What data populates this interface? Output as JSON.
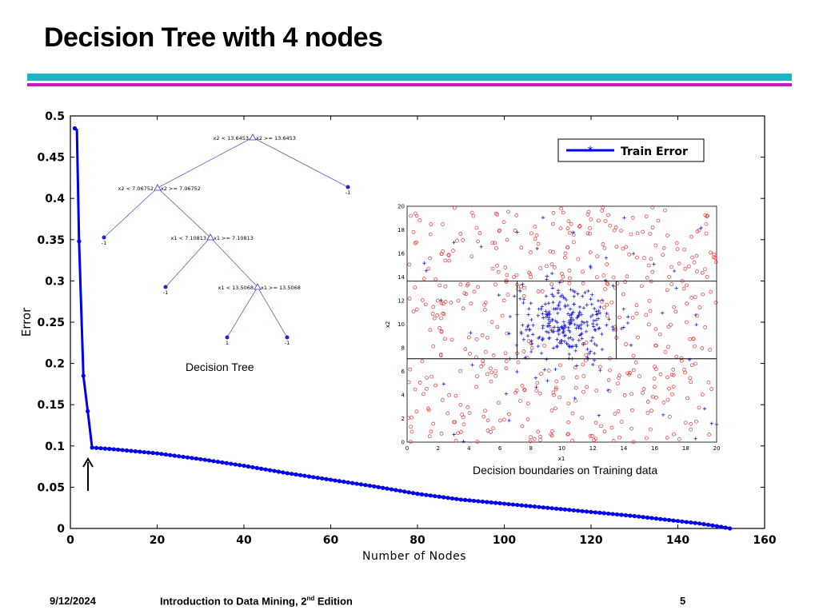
{
  "slide": {
    "title": "Decision Tree with 4 nodes",
    "date": "9/12/2024",
    "course_prefix": "Introduction to Data Mining, 2",
    "course_sup": "nd",
    "course_suffix": " Edition",
    "page": "5"
  },
  "colors": {
    "bar_cyan": "#1fb3c6",
    "bar_magenta": "#cc1bbf",
    "series": "#0000ee",
    "circle": "#e83030"
  },
  "chart_data": [
    {
      "type": "line",
      "title": "",
      "xlabel": "Number of Nodes",
      "ylabel": "Error",
      "xlim": [
        0,
        160
      ],
      "ylim": [
        0,
        0.5
      ],
      "xticks": [
        "0",
        "20",
        "40",
        "60",
        "80",
        "100",
        "120",
        "140",
        "160"
      ],
      "yticks": [
        "0",
        "0.05",
        "0.1",
        "0.15",
        "0.2",
        "0.25",
        "0.3",
        "0.35",
        "0.4",
        "0.45",
        "0.5"
      ],
      "legend": [
        "Train Error"
      ],
      "legend_position": "top-right",
      "series": [
        {
          "name": "Train Error",
          "x": [
            1,
            1.5,
            2,
            3,
            4,
            5,
            10,
            20,
            30,
            40,
            50,
            60,
            70,
            80,
            90,
            100,
            110,
            120,
            130,
            140,
            145,
            150,
            152
          ],
          "y": [
            0.485,
            0.483,
            0.348,
            0.185,
            0.142,
            0.098,
            0.096,
            0.091,
            0.084,
            0.076,
            0.067,
            0.059,
            0.051,
            0.042,
            0.035,
            0.03,
            0.025,
            0.02,
            0.015,
            0.009,
            0.006,
            0.002,
            0.0
          ]
        }
      ],
      "annotation": "Decision Tree",
      "arrow_at_nodes": 4
    },
    {
      "type": "tree",
      "nodes": [
        {
          "id": "root",
          "label": "x2 < 13.6453",
          "label_right": "x2 >= 13.6453"
        },
        {
          "id": "n2",
          "label": "x2 < 7.06752",
          "label_right": "x2 >= 7.06752"
        },
        {
          "id": "n3",
          "label": "x1 < 7.10813",
          "label_right": "x1 >= 7.10813"
        },
        {
          "id": "n4",
          "label": "x1 < 13.5068",
          "label_right": "x1 >= 13.5068"
        }
      ],
      "leaves": [
        {
          "id": "leaf-root-right",
          "label": "-1"
        },
        {
          "id": "leaf-n2-left",
          "label": "-1"
        },
        {
          "id": "leaf-n3-left",
          "label": "-1"
        },
        {
          "id": "leaf-n4-left",
          "label": "1"
        },
        {
          "id": "leaf-n4-right",
          "label": "-1"
        }
      ],
      "edges": [
        [
          "root",
          "n2"
        ],
        [
          "root",
          "leaf-root-right"
        ],
        [
          "n2",
          "leaf-n2-left"
        ],
        [
          "n2",
          "n3"
        ],
        [
          "n3",
          "leaf-n3-left"
        ],
        [
          "n3",
          "n4"
        ],
        [
          "n4",
          "leaf-n4-left"
        ],
        [
          "n4",
          "leaf-n4-right"
        ]
      ]
    },
    {
      "type": "scatter",
      "title": "Decision boundaries on Training data",
      "xlabel": "x1",
      "ylabel": "x2",
      "xlim": [
        0,
        20
      ],
      "ylim": [
        0,
        20
      ],
      "xticks": [
        "0",
        "2",
        "4",
        "6",
        "8",
        "10",
        "12",
        "14",
        "16",
        "18",
        "20"
      ],
      "yticks": [
        "0",
        "2",
        "4",
        "6",
        "8",
        "10",
        "12",
        "14",
        "16",
        "18",
        "20"
      ],
      "boundaries": {
        "x2_lines": [
          13.6453,
          7.06752
        ],
        "x1_lines": [
          7.10813,
          13.5068
        ]
      },
      "classes": [
        {
          "name": "circles",
          "marker": "o",
          "count": 500,
          "distribution": "uniform over 0-20, outside central cluster"
        },
        {
          "name": "crosses",
          "marker": "+",
          "count": 300,
          "distribution": "concentrated around (10,10)"
        }
      ]
    }
  ]
}
